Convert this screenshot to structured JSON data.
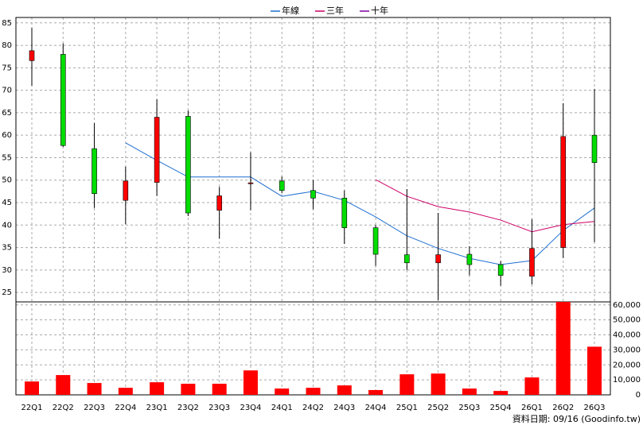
{
  "chart_data": {
    "type": "candlestick",
    "categories": [
      "22Q1",
      "22Q2",
      "22Q3",
      "22Q4",
      "23Q1",
      "23Q2",
      "23Q3",
      "23Q4",
      "24Q1",
      "24Q2",
      "24Q3",
      "24Q4",
      "25Q1",
      "25Q2",
      "25Q3",
      "25Q4",
      "26Q1",
      "26Q2",
      "26Q3"
    ],
    "open": [
      76.6,
      78.0,
      57.0,
      45.5,
      49.5,
      64.2,
      43.3,
      49.2,
      49.8,
      47.7,
      46.0,
      39.4,
      33.4,
      31.6,
      33.5,
      31.2,
      28.6,
      35.0,
      60.0
    ],
    "high": [
      83.9,
      80.4,
      62.7,
      53.0,
      68.0,
      65.5,
      48.5,
      56.2,
      50.8,
      50.0,
      47.7,
      40.0,
      48.0,
      42.7,
      35.3,
      32.0,
      41.3,
      67.1,
      70.3
    ],
    "low": [
      71.0,
      57.4,
      43.8,
      40.2,
      46.5,
      42.0,
      37.0,
      43.3,
      47.1,
      43.5,
      35.8,
      30.9,
      30.0,
      23.3,
      28.8,
      26.5,
      26.8,
      32.7,
      36.2
    ],
    "close": [
      78.8,
      57.7,
      47.0,
      49.8,
      64.0,
      42.7,
      46.5,
      49.4,
      47.7,
      46.0,
      39.4,
      33.5,
      31.6,
      33.4,
      31.2,
      28.8,
      34.8,
      59.7,
      53.9
    ],
    "up_color": "#ff0000",
    "down_color": "#00dd00",
    "series": [
      {
        "name": "年線",
        "color": "#1f6fd0",
        "values": [
          null,
          null,
          null,
          58.3,
          54.4,
          50.7,
          50.7,
          50.7,
          46.4,
          47.5,
          45.5,
          41.8,
          37.6,
          34.8,
          32.6,
          31.2,
          32.1,
          38.8,
          43.8
        ]
      },
      {
        "name": "三年",
        "color": "#cc0066",
        "values": [
          null,
          null,
          null,
          null,
          null,
          null,
          null,
          null,
          null,
          null,
          null,
          50.1,
          46.4,
          44.1,
          42.9,
          41.1,
          38.5,
          40.1,
          40.8
        ]
      },
      {
        "name": "十年",
        "color": "#8000a0",
        "values": [
          null,
          null,
          null,
          null,
          null,
          null,
          null,
          null,
          null,
          null,
          null,
          null,
          null,
          null,
          null,
          null,
          null,
          null,
          null
        ]
      }
    ],
    "ylim": [
      22.9,
      86.2
    ],
    "yticks": [
      25,
      30,
      35,
      40,
      45,
      50,
      55,
      60,
      65,
      70,
      75,
      80,
      85
    ],
    "volume": {
      "color": "#ff0000",
      "values": [
        8900,
        13200,
        7900,
        4700,
        8400,
        7400,
        7400,
        16300,
        4200,
        4700,
        6300,
        3200,
        13700,
        14200,
        4200,
        2600,
        11600,
        62000,
        32100
      ]
    },
    "y2lim": [
      0,
      62000
    ],
    "y2ticks": [
      0,
      {
        "value": 10000,
        "label": "10,000"
      },
      {
        "value": 20000,
        "label": "20,000"
      },
      {
        "value": 30000,
        "label": "30,000"
      },
      {
        "value": 40000,
        "label": "40,000"
      },
      {
        "value": 50000,
        "label": "50,000"
      },
      {
        "value": 60000,
        "label": "60,000"
      }
    ],
    "grid": true,
    "legend": "top",
    "footer": "資料日期: 09/16  (Goodinfo.tw)"
  }
}
